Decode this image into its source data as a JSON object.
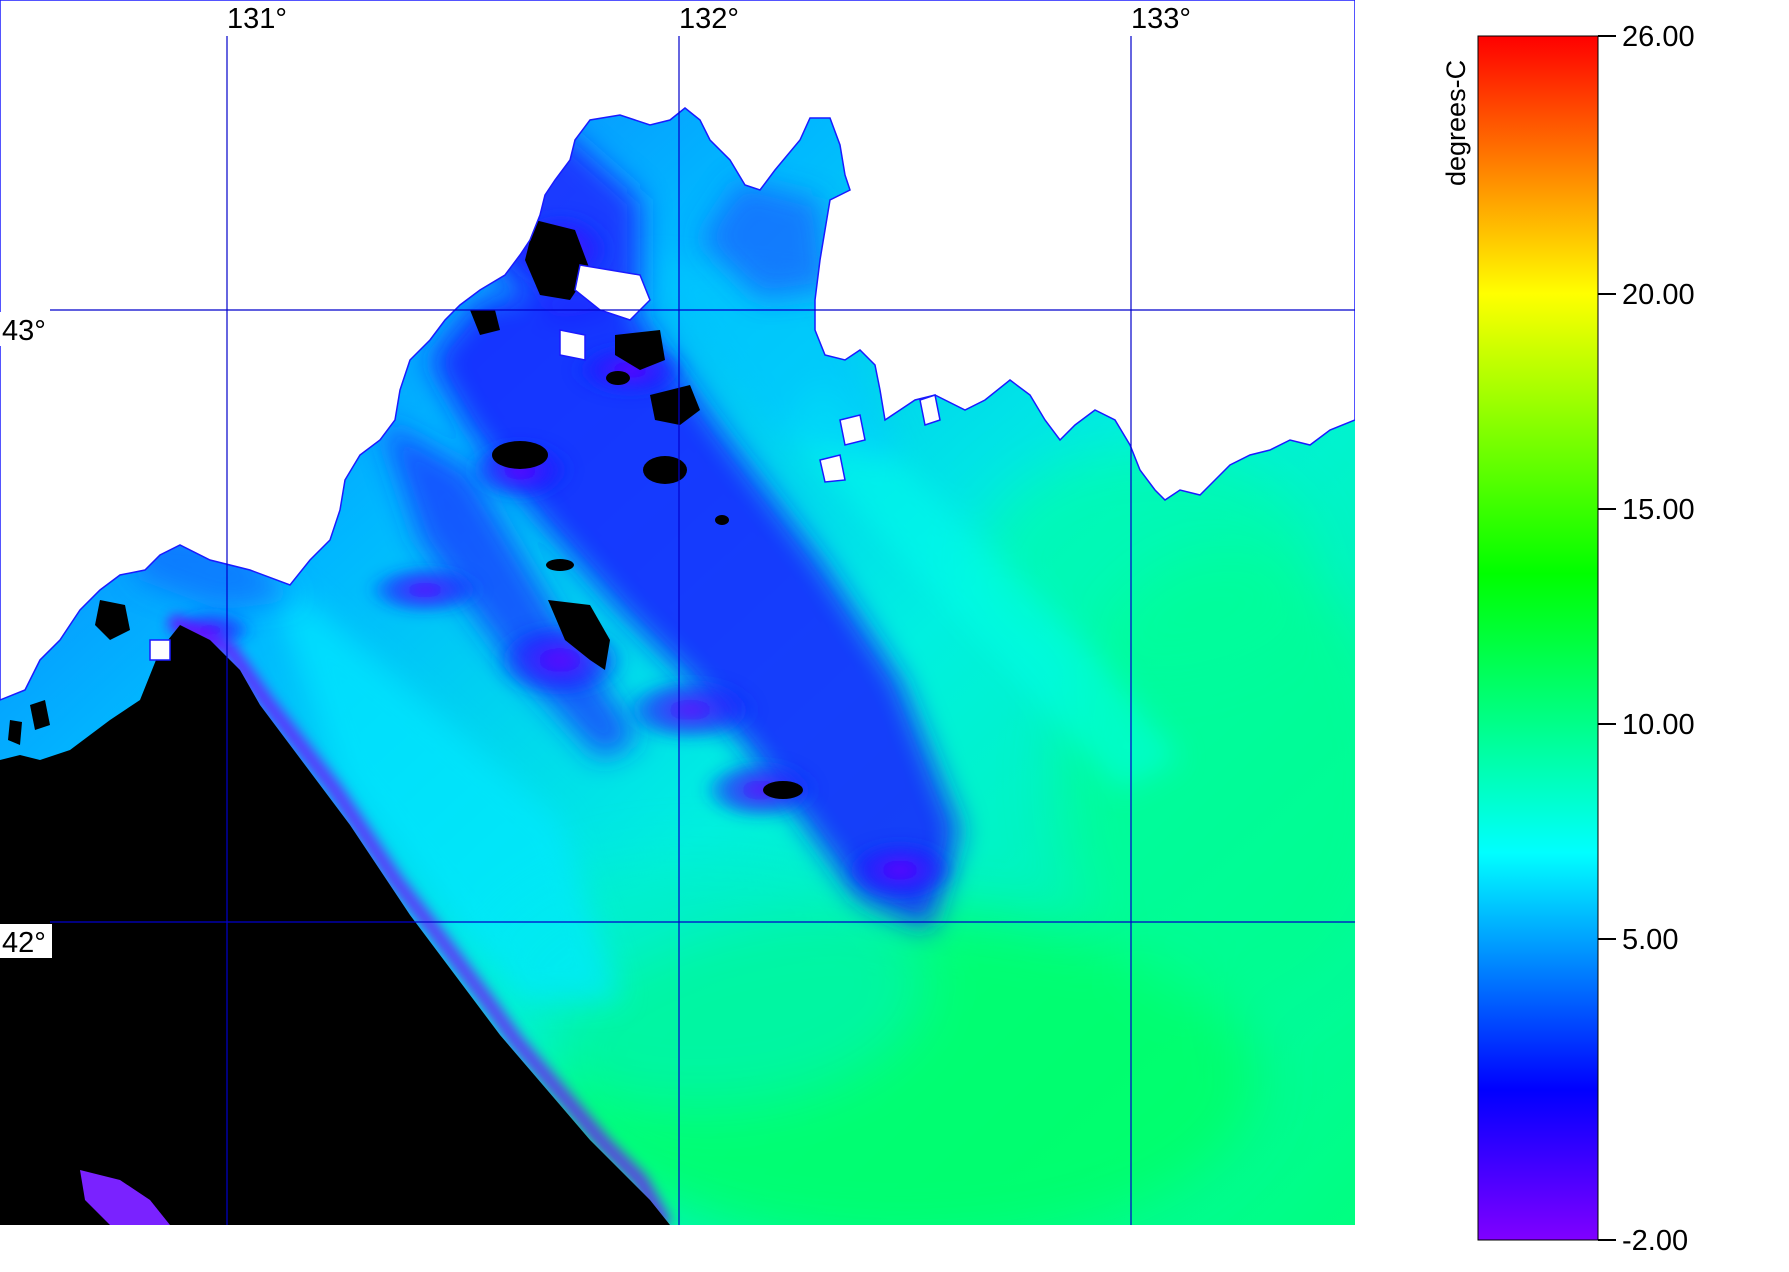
{
  "map": {
    "longitude_labels": [
      "131°",
      "132°",
      "133°"
    ],
    "latitude_labels": [
      "43°",
      "42°"
    ],
    "grid_color": "#0000cc",
    "land_color": "#000000",
    "no_data_color": "#ffffff"
  },
  "colorbar": {
    "unit_label": "degrees-C",
    "min": -2.0,
    "max": 26.0,
    "tick_labels": [
      "26.00",
      "20.00",
      "15.00",
      "10.00",
      "5.00",
      "-2.00"
    ],
    "tick_values": [
      26,
      20,
      15,
      10,
      5,
      -2
    ],
    "color_stops": [
      {
        "value": -2,
        "color": "#8000ff"
      },
      {
        "value": 1.5,
        "color": "#0000ff"
      },
      {
        "value": 7,
        "color": "#00ffff"
      },
      {
        "value": 13.5,
        "color": "#00ff00"
      },
      {
        "value": 20,
        "color": "#ffff00"
      },
      {
        "value": 26,
        "color": "#ff0000"
      }
    ]
  }
}
